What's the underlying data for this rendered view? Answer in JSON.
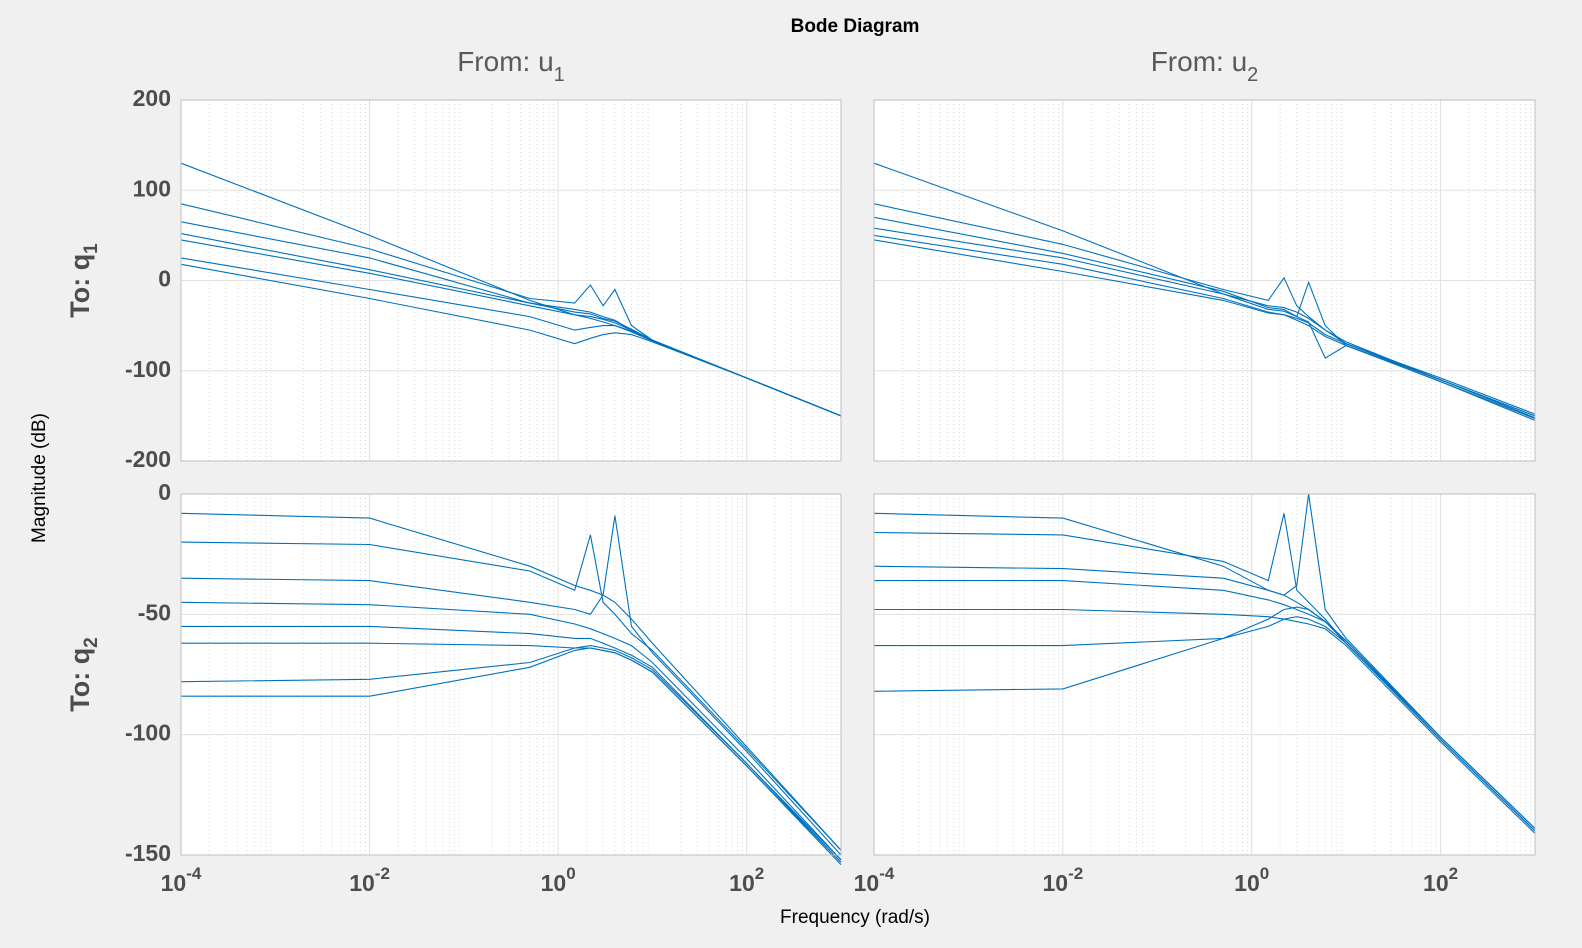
{
  "title": "Bode Diagram",
  "xlabel": "Frequency  (rad/s)",
  "ylabel": "Magnitude (dB)",
  "columns": [
    {
      "text": "From: u",
      "sub": "1"
    },
    {
      "text": "From: u",
      "sub": "2"
    }
  ],
  "rows": [
    {
      "text": "To: q",
      "sub": "1"
    },
    {
      "text": "To: q",
      "sub": "2"
    }
  ],
  "chart_data": [
    {
      "type": "line",
      "xscale": "log",
      "grid": true,
      "minor_grid": true,
      "color": "#0072bd",
      "xlim": [
        0.0001,
        1000
      ],
      "xticks": [
        0.0001,
        0.01,
        1,
        100
      ],
      "ylim": [
        -200,
        200
      ],
      "yticks": [
        -200,
        -100,
        0,
        100,
        200
      ],
      "x": [
        0.0001,
        0.01,
        0.5,
        1.5,
        2.2,
        3,
        4,
        6,
        10,
        100,
        1000
      ],
      "series": [
        {
          "values": [
            130,
            50,
            -22,
            -38,
            -42,
            -46,
            -50,
            -57,
            -67,
            -108,
            -150
          ]
        },
        {
          "values": [
            85,
            35,
            -20,
            -25,
            -5,
            -28,
            -10,
            -50,
            -66,
            -108,
            -150
          ]
        },
        {
          "values": [
            65,
            25,
            -25,
            -32,
            -35,
            -40,
            -44,
            -55,
            -67,
            -108,
            -150
          ]
        },
        {
          "values": [
            52,
            12,
            -25,
            -35,
            -37,
            -42,
            -45,
            -54,
            -66,
            -108,
            -150
          ]
        },
        {
          "values": [
            45,
            8,
            -28,
            -38,
            -40,
            -43,
            -47,
            -55,
            -66,
            -108,
            -150
          ]
        },
        {
          "values": [
            25,
            -10,
            -40,
            -55,
            -52,
            -50,
            -50,
            -56,
            -67,
            -108,
            -150
          ]
        },
        {
          "values": [
            18,
            -20,
            -55,
            -70,
            -64,
            -60,
            -58,
            -60,
            -68,
            -108,
            -150
          ]
        }
      ]
    },
    {
      "type": "line",
      "xscale": "log",
      "grid": true,
      "minor_grid": true,
      "color": "#0072bd",
      "xlim": [
        0.0001,
        1000
      ],
      "xticks": [
        0.0001,
        0.01,
        1,
        100
      ],
      "ylim": [
        -200,
        200
      ],
      "yticks": [
        -200,
        -100,
        0,
        100,
        200
      ],
      "x": [
        0.0001,
        0.01,
        0.5,
        1.5,
        2.2,
        3,
        4,
        6,
        10,
        100,
        1000
      ],
      "series": [
        {
          "values": [
            130,
            55,
            -15,
            -28,
            -30,
            -35,
            -42,
            -55,
            -70,
            -110,
            -150
          ]
        },
        {
          "values": [
            85,
            40,
            -10,
            -22,
            3,
            -28,
            -40,
            -55,
            -68,
            -110,
            -152
          ]
        },
        {
          "values": [
            70,
            30,
            -12,
            -30,
            -32,
            -40,
            -2,
            -50,
            -72,
            -112,
            -153
          ]
        },
        {
          "values": [
            58,
            25,
            -15,
            -32,
            -34,
            -40,
            -46,
            -86,
            -72,
            -110,
            -150
          ]
        },
        {
          "values": [
            50,
            18,
            -20,
            -35,
            -38,
            -42,
            -47,
            -60,
            -70,
            -108,
            -148
          ]
        },
        {
          "values": [
            45,
            10,
            -22,
            -36,
            -38,
            -44,
            -50,
            -62,
            -72,
            -112,
            -155
          ]
        }
      ]
    },
    {
      "type": "line",
      "xscale": "log",
      "grid": true,
      "minor_grid": true,
      "color": "#0072bd",
      "xlim": [
        0.0001,
        1000
      ],
      "xticks": [
        {
          "value": 0.0001,
          "label": "10",
          "exp": "-4"
        },
        {
          "value": 0.01,
          "label": "10",
          "exp": "-2"
        },
        {
          "value": 1,
          "label": "10",
          "exp": "0"
        },
        {
          "value": 100,
          "label": "10",
          "exp": "2"
        }
      ],
      "ylim": [
        -150,
        0
      ],
      "yticks": [
        -150,
        -100,
        -50,
        0
      ],
      "x": [
        0.0001,
        0.01,
        0.5,
        1.5,
        2.2,
        3,
        4,
        6,
        10,
        100,
        1000
      ],
      "series": [
        {
          "values": [
            -8,
            -10,
            -30,
            -38,
            -40,
            -42,
            -45,
            -52,
            -62,
            -105,
            -148
          ]
        },
        {
          "values": [
            -20,
            -21,
            -32,
            -40,
            -17,
            -45,
            -50,
            -58,
            -65,
            -106,
            -148
          ]
        },
        {
          "values": [
            -35,
            -36,
            -45,
            -48,
            -50,
            -42,
            -9,
            -55,
            -66,
            -107,
            -150
          ]
        },
        {
          "values": [
            -45,
            -46,
            -50,
            -54,
            -56,
            -58,
            -60,
            -63,
            -70,
            -110,
            -152
          ]
        },
        {
          "values": [
            -55,
            -55,
            -58,
            -60,
            -60,
            -62,
            -64,
            -67,
            -72,
            -112,
            -153
          ]
        },
        {
          "values": [
            -62,
            -62,
            -63,
            -64,
            -64,
            -65,
            -66,
            -69,
            -74,
            -113,
            -154
          ]
        },
        {
          "values": [
            -78,
            -77,
            -70,
            -64,
            -63,
            -64,
            -65,
            -68,
            -73,
            -112,
            -152
          ]
        },
        {
          "values": [
            -84,
            -84,
            -72,
            -65,
            -64,
            -65,
            -66,
            -69,
            -74,
            -113,
            -153
          ]
        }
      ]
    },
    {
      "type": "line",
      "xscale": "log",
      "grid": true,
      "minor_grid": true,
      "color": "#0072bd",
      "xlim": [
        0.0001,
        1000
      ],
      "xticks": [
        {
          "value": 0.0001,
          "label": "10",
          "exp": "-4"
        },
        {
          "value": 0.01,
          "label": "10",
          "exp": "-2"
        },
        {
          "value": 1,
          "label": "10",
          "exp": "0"
        },
        {
          "value": 100,
          "label": "10",
          "exp": "2"
        }
      ],
      "ylim": [
        -150,
        0
      ],
      "yticks": [
        -150,
        -100,
        -50,
        0
      ],
      "x": [
        0.0001,
        0.01,
        0.5,
        1.5,
        2.2,
        3,
        4,
        6,
        10,
        100,
        1000
      ],
      "series": [
        {
          "values": [
            -8,
            -10,
            -30,
            -40,
            -42,
            -45,
            -48,
            -53,
            -62,
            -102,
            -140
          ]
        },
        {
          "values": [
            -16,
            -17,
            -28,
            -36,
            -8,
            -40,
            -45,
            -52,
            -62,
            -102,
            -140
          ]
        },
        {
          "values": [
            -30,
            -31,
            -35,
            -40,
            -42,
            -38,
            0,
            -48,
            -60,
            -101,
            -139
          ]
        },
        {
          "values": [
            -36,
            -36,
            -40,
            -44,
            -46,
            -48,
            -50,
            -53,
            -61,
            -102,
            -140
          ]
        },
        {
          "values": [
            -48,
            -48,
            -50,
            -51,
            -52,
            -53,
            -54,
            -56,
            -63,
            -103,
            -141
          ]
        },
        {
          "values": [
            -63,
            -63,
            -60,
            -55,
            -52,
            -51,
            -52,
            -55,
            -62,
            -102,
            -140
          ]
        },
        {
          "values": [
            -82,
            -81,
            -60,
            -52,
            -48,
            -47,
            -48,
            -53,
            -61,
            -101,
            -139
          ]
        }
      ]
    }
  ]
}
